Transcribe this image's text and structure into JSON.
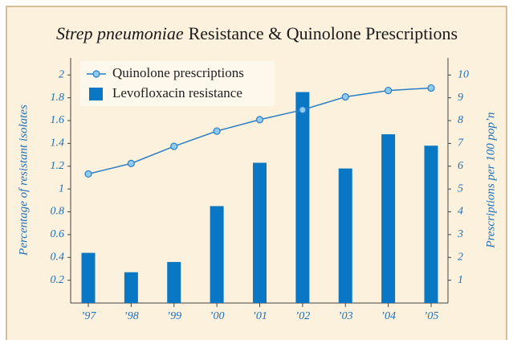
{
  "chart_data": {
    "type": "bar_line",
    "title_parts": [
      "Strep pneumoniae",
      "Resistance & Quinolone Prescriptions"
    ],
    "ylabel": "Percentage of resistant isolates",
    "y2label": "Prescriptions per 100 pop’n",
    "categories": [
      "’97",
      "’98",
      "’99",
      "’00",
      "’01",
      "’02",
      "’03",
      "’04",
      "’05"
    ],
    "series": [
      {
        "name": "Quinolone prescriptions",
        "type": "line",
        "axis": "y2",
        "color": "#2a7ec4",
        "marker_color": "#8fcbef",
        "values": [
          5.66,
          6.12,
          6.87,
          7.54,
          8.04,
          8.47,
          9.04,
          9.32,
          9.43
        ]
      },
      {
        "name": "Levofloxacin resistance",
        "type": "bar",
        "color": "#0a77c4",
        "values": [
          0.44,
          0.27,
          0.36,
          0.85,
          1.23,
          1.85,
          1.18,
          1.48,
          1.38
        ]
      }
    ],
    "ylim": [
      0,
      2.15
    ],
    "yticks": [
      0.2,
      0.4,
      0.6,
      0.8,
      1,
      1.2,
      1.4,
      1.6,
      1.8,
      2
    ],
    "y2lim": [
      0,
      10.75
    ],
    "y2ticks": [
      1,
      2,
      3,
      4,
      5,
      6,
      7,
      8,
      9,
      10
    ],
    "legend": "upper left"
  }
}
